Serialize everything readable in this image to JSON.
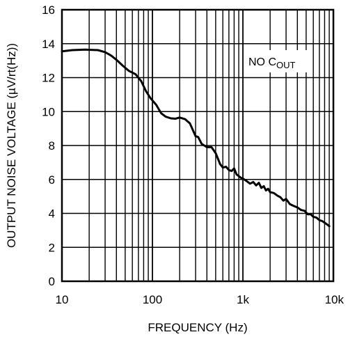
{
  "chart_data": {
    "type": "line",
    "xscale": "log",
    "xlim": [
      10,
      10000
    ],
    "ylim": [
      0,
      16
    ],
    "grid": true,
    "xlabel": "FREQUENCY (Hz)",
    "ylabel": "OUTPUT NOISE VOLTAGE (µV/rt(Hz))",
    "xticks": [
      10,
      100,
      1000,
      10000
    ],
    "xtick_labels": [
      "10",
      "100",
      "1k",
      "10k"
    ],
    "yticks": [
      0,
      2,
      4,
      6,
      8,
      10,
      12,
      14,
      16
    ],
    "ytick_labels": [
      "0",
      "2",
      "4",
      "6",
      "8",
      "10",
      "12",
      "14",
      "16"
    ],
    "annotation": {
      "main": "NO C",
      "subscript": "OUT"
    },
    "series": [
      {
        "x": [
          10,
          13,
          18,
          25,
          30,
          35,
          40,
          47,
          55,
          65,
          75,
          85,
          95,
          110,
          125,
          140,
          160,
          180,
          200,
          230,
          260,
          300,
          320,
          350,
          400,
          450,
          500,
          560,
          600,
          650,
          700,
          750,
          800,
          850,
          900,
          950,
          1000,
          1100,
          1200,
          1300,
          1400,
          1500,
          1600,
          1700,
          1800,
          1900,
          2000,
          2200,
          2400,
          2600,
          2800,
          3000,
          3300,
          3600,
          4000,
          4400,
          4800,
          5200,
          5600,
          6000,
          6500,
          7000,
          7500,
          8000,
          8500,
          9000
        ],
        "y": [
          13.55,
          13.62,
          13.65,
          13.62,
          13.5,
          13.3,
          13.05,
          12.7,
          12.4,
          12.2,
          11.8,
          11.2,
          10.8,
          10.4,
          9.9,
          9.7,
          9.6,
          9.58,
          9.65,
          9.55,
          9.3,
          8.55,
          8.5,
          8.1,
          7.9,
          7.9,
          7.55,
          6.9,
          6.7,
          6.75,
          6.55,
          6.5,
          6.65,
          6.3,
          6.2,
          6.1,
          6.05,
          5.9,
          5.75,
          5.85,
          5.65,
          5.8,
          5.5,
          5.6,
          5.35,
          5.45,
          5.25,
          5.2,
          5.05,
          4.95,
          4.75,
          4.85,
          4.55,
          4.45,
          4.35,
          4.2,
          4.15,
          3.95,
          3.95,
          3.8,
          3.75,
          3.6,
          3.55,
          3.45,
          3.35,
          3.25
        ]
      }
    ]
  }
}
